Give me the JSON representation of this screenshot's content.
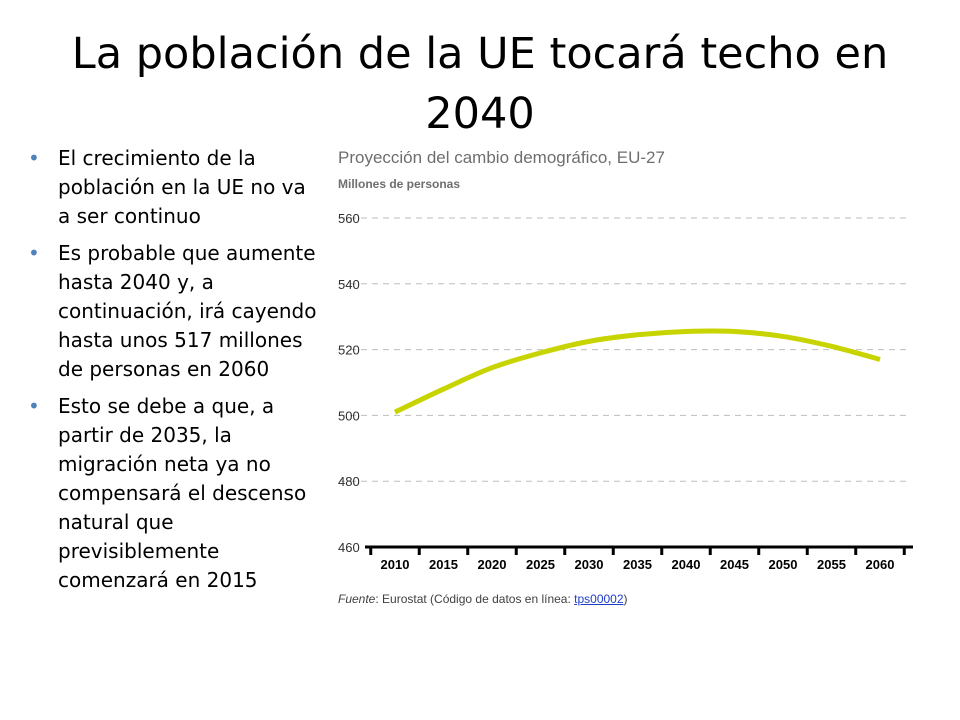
{
  "slide": {
    "title": "La población de la UE tocará techo en 2040",
    "bullets": [
      "El crecimiento de la población en la UE no va a ser continuo",
      "Es probable que aumente hasta 2040 y, a continuación, irá cayendo hasta unos 517 millones de personas en 2060",
      "Esto se debe a que, a partir de 2035, la migración neta ya no compensará el descenso natural que previsiblemente comenzará en 2015"
    ]
  },
  "chart_data": {
    "type": "line",
    "title": "Proyección del cambio demográfico, EU-27",
    "ylabel": "Millones de personas",
    "xlabel": "",
    "categories": [
      "2010",
      "2015",
      "2020",
      "2025",
      "2030",
      "2035",
      "2040",
      "2045",
      "2050",
      "2055",
      "2060"
    ],
    "y_ticks": [
      "460",
      "480",
      "500",
      "520",
      "540",
      "560"
    ],
    "ylim": [
      460,
      560
    ],
    "grid": true,
    "series": [
      {
        "values": [
          501,
          508,
          514.5,
          519,
          522.5,
          524.5,
          525.5,
          525.5,
          524,
          521,
          517
        ],
        "color": "#c8d400"
      }
    ],
    "source": {
      "label": "Fuente",
      "text": ": Eurostat (Código de datos en línea: ",
      "link_text": "tps00002",
      "close": ")"
    }
  }
}
